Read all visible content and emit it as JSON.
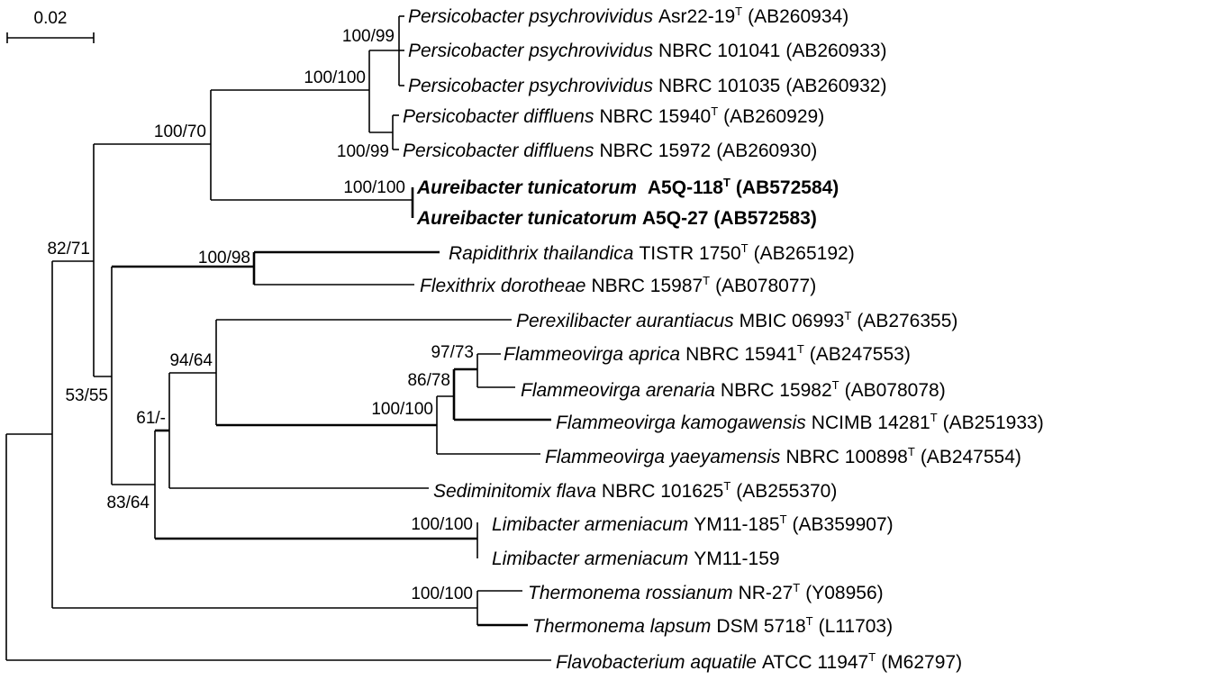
{
  "scale": {
    "label": "0.02"
  },
  "taxa": [
    {
      "id": "t1",
      "genus": "Persicobacter psychrovividus",
      "strain": "Asr22-19",
      "type": true,
      "acc": "(AB260934)"
    },
    {
      "id": "t2",
      "genus": "Persicobacter psychrovividus",
      "strain": "NBRC 101041",
      "type": false,
      "acc": "(AB260933)"
    },
    {
      "id": "t3",
      "genus": "Persicobacter psychrovividus",
      "strain": "NBRC 101035",
      "type": false,
      "acc": "(AB260932)"
    },
    {
      "id": "t4",
      "genus": "Persicobacter diffluens",
      "strain": "NBRC 15940",
      "type": true,
      "acc": "(AB260929)"
    },
    {
      "id": "t5",
      "genus": "Persicobacter diffluens",
      "strain": "NBRC 15972",
      "type": false,
      "acc": "(AB260930)"
    },
    {
      "id": "t6",
      "genus": "Aureibacter tunicatorum",
      "strain": "A5Q-118",
      "type": true,
      "acc": "(AB572584)",
      "bold": true
    },
    {
      "id": "t7",
      "genus": "Aureibacter tunicatorum",
      "strain": "A5Q-27",
      "type": false,
      "acc": "(AB572583)",
      "bold": true
    },
    {
      "id": "t8",
      "genus": "Rapidithrix thailandica",
      "strain": "TISTR 1750",
      "type": true,
      "acc": "(AB265192)"
    },
    {
      "id": "t9",
      "genus": "Flexithrix dorotheae",
      "strain": "NBRC 15987",
      "type": true,
      "acc": "(AB078077)"
    },
    {
      "id": "t10",
      "genus": "Perexilibacter aurantiacus",
      "strain": "MBIC 06993",
      "type": true,
      "acc": "(AB276355)"
    },
    {
      "id": "t11",
      "genus": "Flammeovirga aprica",
      "strain": "NBRC 15941",
      "type": true,
      "acc": "(AB247553)"
    },
    {
      "id": "t12",
      "genus": "Flammeovirga arenaria",
      "strain": "NBRC 15982",
      "type": true,
      "acc": "(AB078078)"
    },
    {
      "id": "t13",
      "genus": "Flammeovirga kamogawensis",
      "strain": "NCIMB 14281",
      "type": true,
      "acc": "(AB251933)"
    },
    {
      "id": "t14",
      "genus": "Flammeovirga yaeyamensis",
      "strain": "NBRC 100898",
      "type": true,
      "acc": "(AB247554)"
    },
    {
      "id": "t15",
      "genus": "Sediminitomix flava",
      "strain": "NBRC 101625",
      "type": true,
      "acc": "(AB255370)"
    },
    {
      "id": "t16",
      "genus": "Limibacter armeniacum",
      "strain": "YM11-185",
      "type": true,
      "acc": "(AB359907)"
    },
    {
      "id": "t17",
      "genus": "Limibacter armeniacum",
      "strain": "YM11-159",
      "type": false,
      "acc": ""
    },
    {
      "id": "t18",
      "genus": "Thermonema rossianum",
      "strain": "NR-27",
      "type": true,
      "acc": "(Y08956)"
    },
    {
      "id": "t19",
      "genus": "Thermonema lapsum",
      "strain": "DSM 5718",
      "type": true,
      "acc": "(L11703)"
    },
    {
      "id": "t20",
      "genus": "Flavobacterium aquatile",
      "strain": "ATCC 11947",
      "type": true,
      "acc": "(M62797)"
    }
  ],
  "type_mark": "T",
  "bootstrap": {
    "b1": "100/99",
    "b2": "100/100",
    "b3": "100/99",
    "b4": "100/70",
    "b5": "100/100",
    "b6": "82/71",
    "b7": "100/98",
    "b8": "94/64",
    "b9": "97/73",
    "b10": "86/78",
    "b11": "100/100",
    "b12": "61/-",
    "b13": "53/55",
    "b14": "83/64",
    "b15": "100/100",
    "b16": "100/100"
  }
}
